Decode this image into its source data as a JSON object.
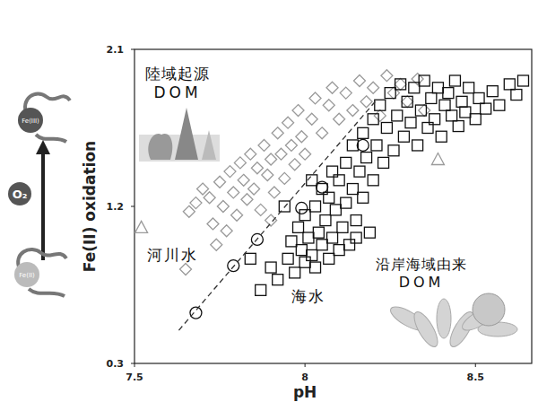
{
  "chart_data": {
    "type": "scatter",
    "x_label": "pH",
    "y_label": "Fe(II) oxidation",
    "xlim": [
      7.5,
      8.665
    ],
    "ylim": [
      0.3,
      2.1
    ],
    "xticks": [
      7.5,
      8,
      8.5
    ],
    "yticks": [
      0.3,
      1.2,
      2.1
    ],
    "grid": false,
    "annotations": [
      "陸域起源 DOM",
      "沿岸海域由来 DOM",
      "Fe(III)",
      "O₂",
      "Fe(II)"
    ],
    "series": [
      {
        "name": "河川水",
        "color": "#9a9a9a",
        "marker": "diamond",
        "x": [
          7.65,
          7.66,
          7.68,
          7.7,
          7.72,
          7.73,
          7.75,
          7.76,
          7.78,
          7.79,
          7.8,
          7.81,
          7.82,
          7.83,
          7.84,
          7.85,
          7.86,
          7.87,
          7.88,
          7.89,
          7.9,
          7.91,
          7.92,
          7.93,
          7.94,
          7.95,
          7.96,
          7.97,
          7.98,
          7.99,
          8.0,
          8.02,
          8.03,
          8.05,
          8.07,
          8.08,
          8.1,
          8.12,
          8.14,
          8.16,
          8.18,
          8.2,
          8.22,
          8.24,
          8.26,
          8.28,
          8.3,
          8.33,
          7.77,
          7.74,
          7.9,
          8.35
        ],
        "values": [
          0.84,
          1.17,
          1.22,
          1.3,
          1.25,
          1.1,
          1.34,
          1.2,
          1.4,
          1.28,
          1.15,
          1.45,
          1.35,
          1.24,
          1.5,
          1.3,
          1.42,
          1.18,
          1.55,
          1.38,
          1.47,
          1.28,
          1.62,
          1.5,
          1.36,
          1.68,
          1.55,
          1.44,
          1.75,
          1.6,
          1.5,
          1.7,
          1.82,
          1.62,
          1.78,
          1.88,
          1.7,
          1.85,
          1.75,
          1.92,
          1.8,
          1.88,
          1.72,
          1.95,
          1.85,
          1.9,
          1.8,
          1.93,
          1.06,
          0.98,
          1.12,
          1.75
        ]
      },
      {
        "name": "海水",
        "color": "#111111",
        "marker": "square",
        "x": [
          7.87,
          7.9,
          7.92,
          7.95,
          7.96,
          7.97,
          7.98,
          7.99,
          8.0,
          8.0,
          8.01,
          8.02,
          8.03,
          8.03,
          8.04,
          8.05,
          8.05,
          8.06,
          8.07,
          8.07,
          8.08,
          8.08,
          8.09,
          8.1,
          8.1,
          8.11,
          8.12,
          8.12,
          8.13,
          8.14,
          8.14,
          8.15,
          8.16,
          8.17,
          8.17,
          8.18,
          8.19,
          8.2,
          8.2,
          8.21,
          8.22,
          8.23,
          8.24,
          8.25,
          8.26,
          8.27,
          8.28,
          8.29,
          8.3,
          8.31,
          8.32,
          8.33,
          8.34,
          8.35,
          8.36,
          8.37,
          8.38,
          8.39,
          8.4,
          8.41,
          8.42,
          8.43,
          8.44,
          8.45,
          8.46,
          8.47,
          8.48,
          8.5,
          8.51,
          8.53,
          8.55,
          8.57,
          8.6,
          8.62,
          8.64,
          7.84,
          7.94,
          8.02,
          8.15
        ],
        "values": [
          0.72,
          0.85,
          0.78,
          0.9,
          1.0,
          0.82,
          1.08,
          0.95,
          0.88,
          1.15,
          1.02,
          0.92,
          1.2,
          0.85,
          1.05,
          0.98,
          1.3,
          1.12,
          0.9,
          1.25,
          1.4,
          1.02,
          1.18,
          0.95,
          1.35,
          1.08,
          1.45,
          1.22,
          0.98,
          1.3,
          1.55,
          1.12,
          1.4,
          1.62,
          1.25,
          1.48,
          1.05,
          1.7,
          1.35,
          1.55,
          1.78,
          1.45,
          1.65,
          1.85,
          1.52,
          1.72,
          1.9,
          1.6,
          1.8,
          1.68,
          1.88,
          1.55,
          1.75,
          1.92,
          1.65,
          1.82,
          1.7,
          1.88,
          1.6,
          1.78,
          1.85,
          1.72,
          1.92,
          1.66,
          1.8,
          1.74,
          1.88,
          1.7,
          1.82,
          1.76,
          1.86,
          1.78,
          1.9,
          1.84,
          1.92,
          0.9,
          1.2,
          1.35,
          1.02
        ]
      },
      {
        "color": "#111111",
        "marker": "circle",
        "x": [
          7.68,
          7.79,
          7.86,
          7.99,
          8.05,
          8.17
        ],
        "values": [
          0.59,
          0.86,
          1.01,
          1.19,
          1.31,
          1.55
        ]
      },
      {
        "color": "#9a9a9a",
        "marker": "triangle",
        "x": [
          7.52,
          8.39
        ],
        "values": [
          1.08,
          1.47
        ]
      },
      {
        "type": "line",
        "color": "#333333",
        "line_style": "dashed",
        "x": [
          7.63,
          8.21
        ],
        "values": [
          0.49,
          1.81
        ]
      }
    ]
  }
}
